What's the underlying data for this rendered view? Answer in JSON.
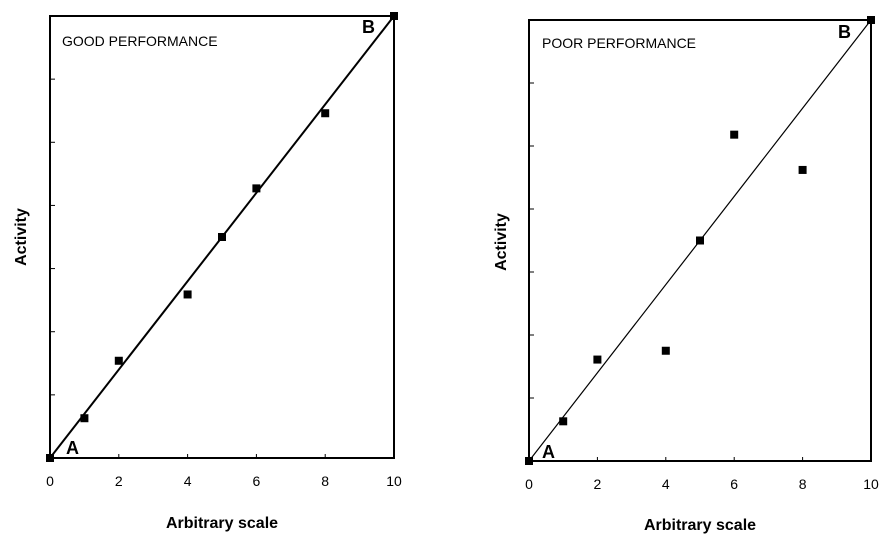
{
  "chart_data": [
    {
      "type": "scatter",
      "title": "GOOD PERFORMANCE",
      "xlabel": "Arbitrary scale",
      "ylabel": "Activity",
      "xlim": [
        0,
        10
      ],
      "ylim": [
        0,
        10
      ],
      "xticks": [
        0,
        2,
        4,
        6,
        8,
        10
      ],
      "y_tick_count": 7,
      "grid": false,
      "points": [
        {
          "x": 0,
          "y": 0
        },
        {
          "x": 1,
          "y": 0.9
        },
        {
          "x": 2,
          "y": 2.2
        },
        {
          "x": 4,
          "y": 3.7
        },
        {
          "x": 5,
          "y": 5.0
        },
        {
          "x": 6,
          "y": 6.1
        },
        {
          "x": 8,
          "y": 7.8
        },
        {
          "x": 10,
          "y": 10
        }
      ],
      "fit_line": {
        "from": [
          0,
          0
        ],
        "to": [
          10,
          10
        ]
      },
      "annotations": {
        "start": "A",
        "end": "B"
      }
    },
    {
      "type": "scatter",
      "title": "POOR PERFORMANCE",
      "xlabel": "Arbitrary scale",
      "ylabel": "Activity",
      "xlim": [
        0,
        10
      ],
      "ylim": [
        0,
        10
      ],
      "xticks": [
        0,
        2,
        4,
        6,
        8,
        10
      ],
      "y_tick_count": 7,
      "grid": false,
      "points": [
        {
          "x": 0,
          "y": 0
        },
        {
          "x": 1,
          "y": 0.9
        },
        {
          "x": 2,
          "y": 2.3
        },
        {
          "x": 4,
          "y": 2.5
        },
        {
          "x": 5,
          "y": 5.0
        },
        {
          "x": 6,
          "y": 7.4
        },
        {
          "x": 8,
          "y": 6.6
        },
        {
          "x": 10,
          "y": 10
        }
      ],
      "fit_line": {
        "from": [
          0,
          0
        ],
        "to": [
          10,
          10
        ]
      },
      "annotations": {
        "start": "A",
        "end": "B"
      }
    }
  ]
}
